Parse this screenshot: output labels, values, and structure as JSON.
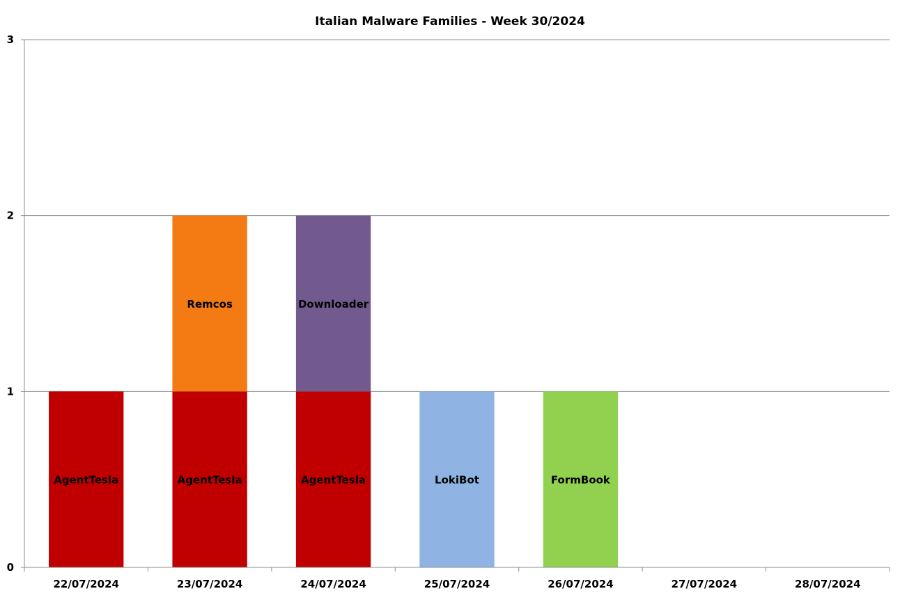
{
  "chart_data": {
    "type": "bar",
    "stacked": true,
    "title": "Italian Malware Families - Week 30/2024",
    "xlabel": "",
    "ylabel": "",
    "ylim": [
      0,
      3
    ],
    "yticks": [
      "0",
      "1",
      "2",
      "3"
    ],
    "grid": true,
    "legend": "none",
    "categories": [
      "22/07/2024",
      "23/07/2024",
      "24/07/2024",
      "25/07/2024",
      "26/07/2024",
      "27/07/2024",
      "28/07/2024"
    ],
    "stacks": [
      [
        {
          "label": "AgentTesla",
          "value": 1,
          "color": "#c00000"
        }
      ],
      [
        {
          "label": "AgentTesla",
          "value": 1,
          "color": "#c00000"
        },
        {
          "label": "Remcos",
          "value": 1,
          "color": "#f47a14"
        }
      ],
      [
        {
          "label": "AgentTesla",
          "value": 1,
          "color": "#c00000"
        },
        {
          "label": "Downloader",
          "value": 1,
          "color": "#725a8e"
        }
      ],
      [
        {
          "label": "LokiBot",
          "value": 1,
          "color": "#8fb4e3"
        }
      ],
      [
        {
          "label": "FormBook",
          "value": 1,
          "color": "#92d050"
        }
      ],
      [],
      []
    ]
  }
}
